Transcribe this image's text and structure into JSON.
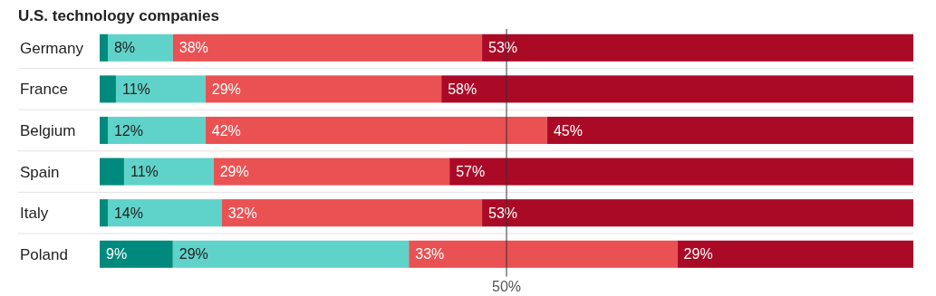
{
  "chart_data": {
    "type": "bar",
    "title": "U.S. technology companies",
    "orientation": "horizontal",
    "stacked": true,
    "categories": [
      "Germany",
      "France",
      "Belgium",
      "Spain",
      "Italy",
      "Poland"
    ],
    "series": [
      {
        "color": "#008a7e",
        "values": [
          1,
          2,
          1,
          3,
          1,
          9
        ],
        "value_labels": [
          null,
          null,
          null,
          null,
          null,
          "9%"
        ]
      },
      {
        "color": "#5fd3c9",
        "values": [
          8,
          11,
          12,
          11,
          14,
          29
        ],
        "value_labels": [
          "8%",
          "11%",
          "12%",
          "11%",
          "14%",
          "29%"
        ]
      },
      {
        "color": "#ea5153",
        "values": [
          38,
          29,
          42,
          29,
          32,
          33
        ],
        "value_labels": [
          "38%",
          "29%",
          "42%",
          "29%",
          "32%",
          "33%"
        ]
      },
      {
        "color": "#ab0a27",
        "values": [
          53,
          58,
          45,
          57,
          53,
          29
        ],
        "value_labels": [
          "53%",
          "58%",
          "45%",
          "57%",
          "53%",
          "29%"
        ]
      }
    ],
    "xlim": [
      0,
      100
    ],
    "tick_labels": "y",
    "ref_lines": [
      {
        "axis": "x",
        "value": 50,
        "label": "50%",
        "color": "#333333"
      }
    ]
  }
}
